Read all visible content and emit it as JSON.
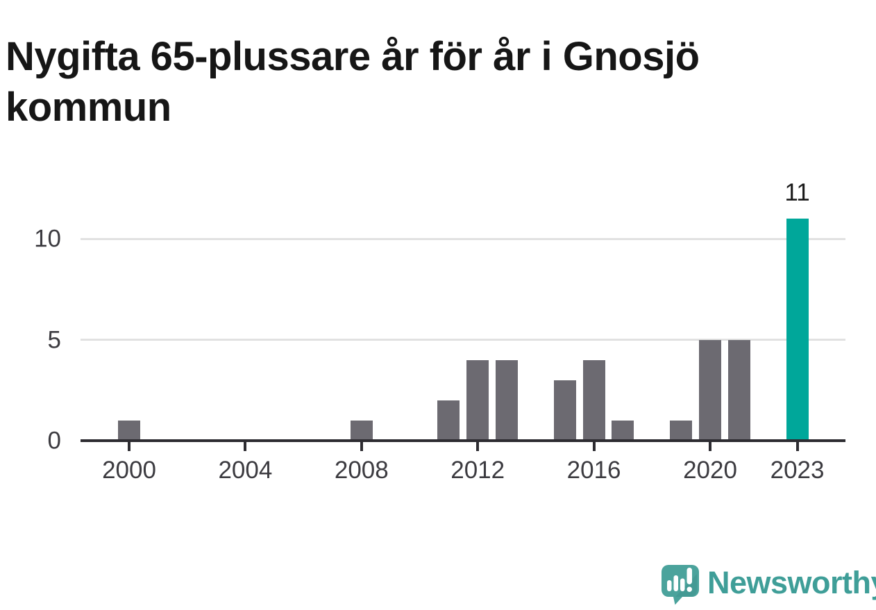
{
  "title": "Nygifta 65-plussare år för år i Gnosjö kommun",
  "annotation": {
    "value_label": "11"
  },
  "footer": {
    "brand": "Newsworthy"
  },
  "colors": {
    "title": "#161616",
    "bar": "#6c6a71",
    "highlight": "#00a79a",
    "axis": "#2d2c31",
    "grid": "#e1e1e1",
    "tick_label": "#3c3b40",
    "logo_text": "#3f9e98",
    "logo_icon": "#4ba39c",
    "logo_icon_shade": "#3f948e"
  },
  "chart_data": {
    "type": "bar",
    "title": "Nygifta 65-plussare år för år i Gnosjö kommun",
    "x": [
      2000,
      2001,
      2002,
      2003,
      2004,
      2005,
      2006,
      2007,
      2008,
      2009,
      2010,
      2011,
      2012,
      2013,
      2014,
      2015,
      2016,
      2017,
      2018,
      2019,
      2020,
      2021,
      2022,
      2023
    ],
    "values": [
      1,
      0,
      0,
      0,
      0,
      0,
      0,
      0,
      1,
      0,
      0,
      2,
      4,
      4,
      0,
      3,
      4,
      1,
      0,
      1,
      5,
      5,
      0,
      11
    ],
    "highlight_year": 2023,
    "annotated_value": 11,
    "x_tick_labels": [
      "2000",
      "2004",
      "2008",
      "2012",
      "2016",
      "2020",
      "2023"
    ],
    "y_ticks": [
      0,
      5,
      10
    ],
    "ylim": [
      0,
      11.6
    ],
    "xlabel": "",
    "ylabel": "",
    "grid": "horizontal-only",
    "legend": "none"
  }
}
